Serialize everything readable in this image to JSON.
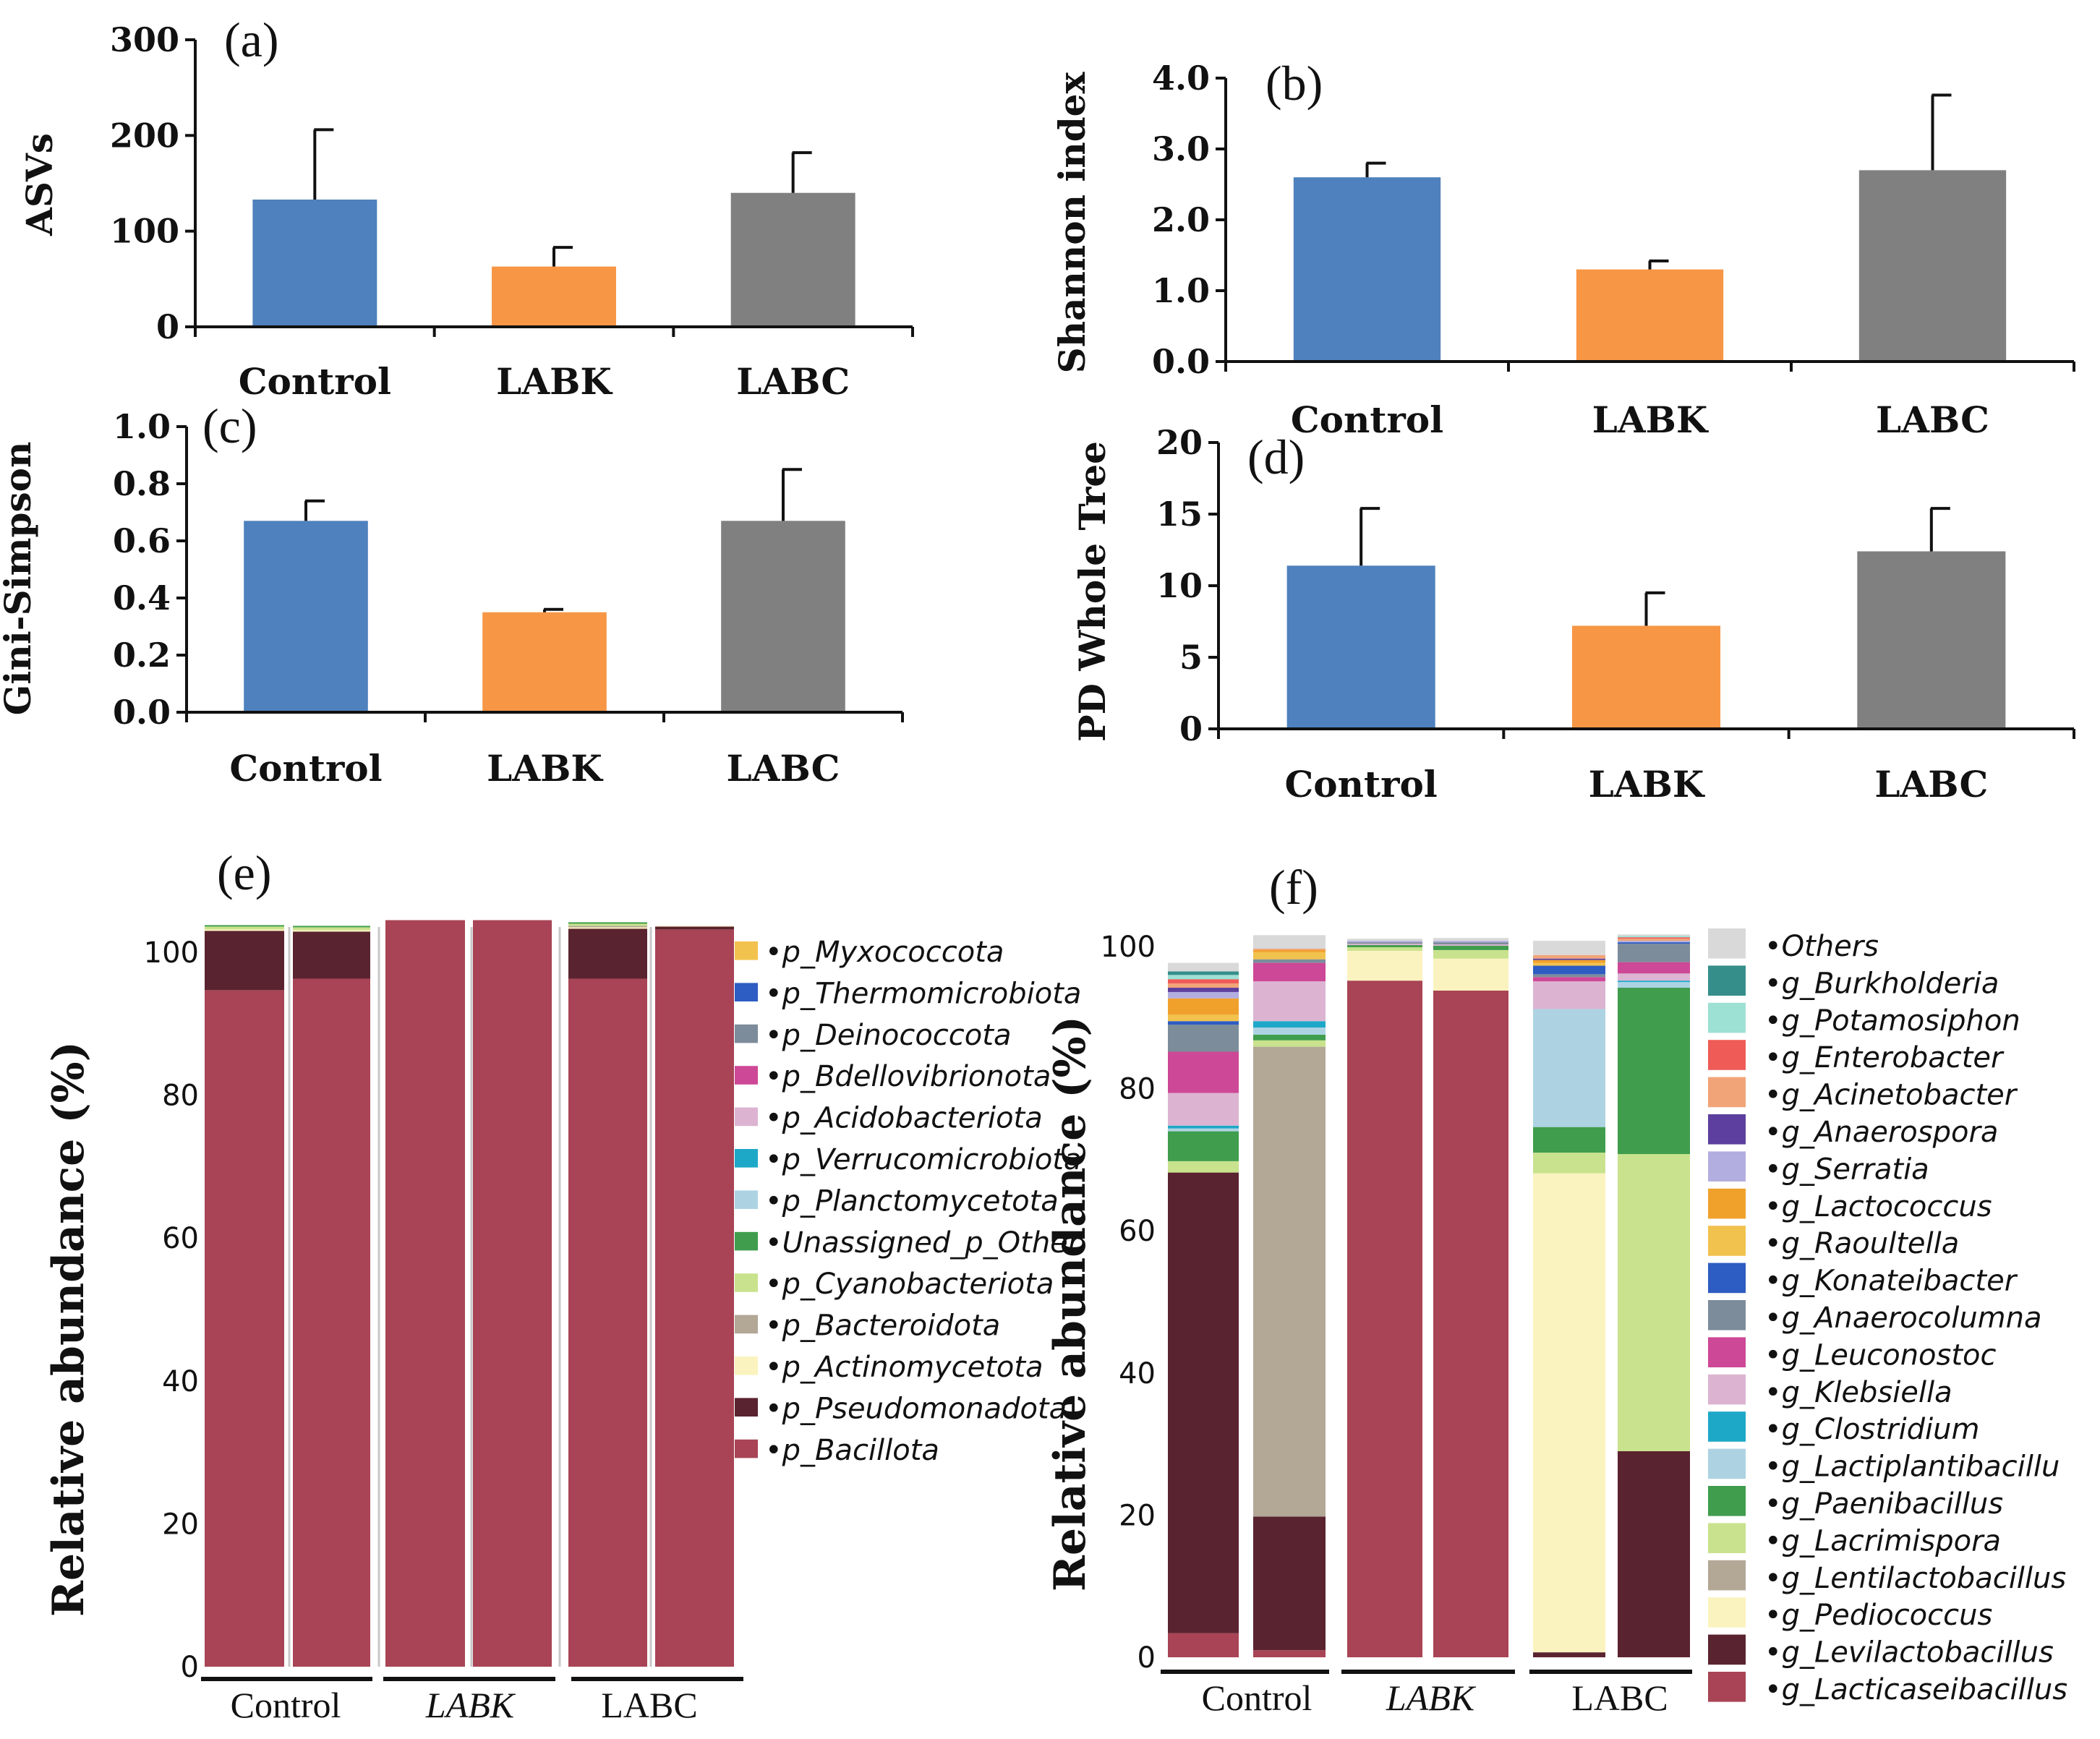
{
  "colors": {
    "control": "#4e81bd",
    "labk": "#f79645",
    "labc": "#808080",
    "axis": "#111111",
    "errorbar": "#111111"
  },
  "chart_data": [
    {
      "panel": "(a)",
      "type": "bar",
      "ylabel": "ASVs",
      "xlabel": "",
      "categories": [
        "Control",
        "LABK",
        "LABC"
      ],
      "values": [
        133,
        63,
        140
      ],
      "errors": [
        73,
        20,
        42
      ],
      "ylim": [
        0,
        300
      ],
      "yticks": [
        0,
        100,
        200,
        300
      ],
      "ytick_labels": [
        "0",
        "100",
        "200",
        "300"
      ]
    },
    {
      "panel": "(b)",
      "type": "bar",
      "ylabel": "Shannon index",
      "xlabel": "",
      "categories": [
        "Control",
        "LABK",
        "LABC"
      ],
      "values": [
        2.6,
        1.3,
        2.7
      ],
      "errors": [
        0.2,
        0.12,
        1.06
      ],
      "ylim": [
        0,
        4
      ],
      "yticks": [
        0,
        1,
        2,
        3,
        4
      ],
      "ytick_labels": [
        "0.0",
        "1.0",
        "2.0",
        "3.0",
        "4.0"
      ]
    },
    {
      "panel": "(c)",
      "type": "bar",
      "ylabel": "Gini-Simpson",
      "xlabel": "",
      "categories": [
        "Control",
        "LABK",
        "LABC"
      ],
      "values": [
        0.67,
        0.35,
        0.67
      ],
      "errors": [
        0.07,
        0.01,
        0.18
      ],
      "ylim": [
        0,
        1
      ],
      "yticks": [
        0,
        0.2,
        0.4,
        0.6,
        0.8,
        1.0
      ],
      "ytick_labels": [
        "0.0",
        "0.2",
        "0.4",
        "0.6",
        "0.8",
        "1.0"
      ]
    },
    {
      "panel": "(d)",
      "type": "bar",
      "ylabel": "PD Whole Tree",
      "xlabel": "",
      "categories": [
        "Control",
        "LABK",
        "LABC"
      ],
      "values": [
        11.4,
        7.2,
        12.4
      ],
      "errors": [
        4.0,
        2.3,
        3.0
      ],
      "ylim": [
        0,
        20
      ],
      "yticks": [
        0,
        5,
        10,
        15,
        20
      ],
      "ytick_labels": [
        "0",
        "5",
        "10",
        "15",
        "20"
      ]
    },
    {
      "panel": "(e)",
      "type": "bar",
      "stacked": true,
      "ylabel": "Relative abundance (%)",
      "groups": [
        "Control",
        "LABK",
        "LABC"
      ],
      "samples_per_group": 2,
      "ylim": [
        0,
        104
      ],
      "yticks": [
        0,
        20,
        40,
        60,
        80,
        100
      ],
      "ytick_labels": [
        "0",
        "20",
        "40",
        "60",
        "80",
        "100"
      ],
      "series": [
        {
          "name": "p_Bacillota",
          "color": "#a84455",
          "values": [
            94.7,
            96.3,
            104.5,
            104.5,
            96.3,
            103.2
          ]
        },
        {
          "name": "p_Pseudomonadota",
          "color": "#5a2330",
          "values": [
            8.3,
            6.6,
            0,
            0,
            7.0,
            0.4
          ]
        },
        {
          "name": "p_Actinomycetota",
          "color": "#fbf3bf",
          "values": [
            0.2,
            0.2,
            0,
            0,
            0.2,
            0.1
          ]
        },
        {
          "name": "p_Bacteroidota",
          "color": "#b3a796",
          "values": [
            0,
            0,
            0,
            0,
            0.2,
            0
          ]
        },
        {
          "name": "p_Cyanobacteriota",
          "color": "#c9e28d",
          "values": [
            0.4,
            0.4,
            0,
            0,
            0.3,
            0
          ]
        },
        {
          "name": "Unassigned_p_Other",
          "color": "#3f9d4d",
          "values": [
            0.2,
            0.2,
            0,
            0,
            0.2,
            0
          ]
        },
        {
          "name": "p_Planctomycetota",
          "color": "#add3e3",
          "values": [
            0,
            0,
            0,
            0,
            0,
            0
          ]
        },
        {
          "name": "p_Verrucomicrobiota",
          "color": "#1ea8c8",
          "values": [
            0,
            0,
            0,
            0,
            0,
            0
          ]
        },
        {
          "name": "p_Acidobacteriota",
          "color": "#dcb4d2",
          "values": [
            0,
            0,
            0,
            0,
            0,
            0
          ]
        },
        {
          "name": "p_Bdellovibrionota",
          "color": "#cd4896",
          "values": [
            0,
            0,
            0,
            0,
            0,
            0
          ]
        },
        {
          "name": "p_Deinococcota",
          "color": "#7c8c9a",
          "values": [
            0,
            0,
            0,
            0,
            0,
            0
          ]
        },
        {
          "name": "p_Thermomicrobiota",
          "color": "#2d5cc2",
          "values": [
            0,
            0,
            0,
            0,
            0,
            0
          ]
        },
        {
          "name": "p_Myxococcota",
          "color": "#f2c24e",
          "values": [
            0,
            0,
            0,
            0,
            0,
            0
          ]
        }
      ]
    },
    {
      "panel": "(f)",
      "type": "bar",
      "stacked": true,
      "ylabel": "Relative abundance (%)",
      "groups": [
        "Control",
        "LABK",
        "LABC"
      ],
      "samples_per_group": 2,
      "ylim": [
        0,
        104
      ],
      "yticks": [
        0,
        20,
        40,
        60,
        80,
        100
      ],
      "ytick_labels": [
        "0",
        "20",
        "40",
        "60",
        "80",
        "100"
      ],
      "series": [
        {
          "name": "g_Lacticaseibacillus",
          "color": "#a84455",
          "values": [
            3.4,
            1.0,
            95.2,
            93.8,
            0,
            0
          ]
        },
        {
          "name": "g_Levilactobacillus",
          "color": "#5a2330",
          "values": [
            64.8,
            18.8,
            0,
            0,
            0.7,
            29.0
          ]
        },
        {
          "name": "g_Pediococcus",
          "color": "#fbf3bf",
          "values": [
            0,
            0,
            4.2,
            4.5,
            67.4,
            0
          ]
        },
        {
          "name": "g_Lentilactobacillus",
          "color": "#b3a796",
          "values": [
            0,
            66.1,
            0,
            0,
            0,
            0
          ]
        },
        {
          "name": "g_Lacrimispora",
          "color": "#c9e28d",
          "values": [
            1.6,
            0.9,
            0.5,
            1.2,
            2.9,
            41.8
          ]
        },
        {
          "name": "g_Paenibacillus",
          "color": "#3f9d4d",
          "values": [
            4.2,
            0.8,
            0.3,
            0.6,
            3.6,
            23.4
          ]
        },
        {
          "name": "g_Lactiplantibacillu",
          "color": "#add3e3",
          "values": [
            0.4,
            1.0,
            0,
            0,
            16.6,
            0.8
          ]
        },
        {
          "name": "g_Clostridium",
          "color": "#1ea8c8",
          "values": [
            0.4,
            0.9,
            0,
            0,
            0,
            0.2
          ]
        },
        {
          "name": "g_Klebsiella",
          "color": "#dcb4d2",
          "values": [
            4.6,
            5.6,
            0.2,
            0.2,
            3.9,
            1.0
          ]
        },
        {
          "name": "g_Leuconostoc",
          "color": "#cd4896",
          "values": [
            5.8,
            2.6,
            0,
            0,
            0.6,
            1.6
          ]
        },
        {
          "name": "g_Anaerocolumna",
          "color": "#7c8c9a",
          "values": [
            3.8,
            0.5,
            0.2,
            0.3,
            0.4,
            2.6
          ]
        },
        {
          "name": "g_Konateibacter",
          "color": "#2d5cc2",
          "values": [
            0.5,
            0,
            0,
            0,
            1.2,
            0.2
          ]
        },
        {
          "name": "g_Raoultella",
          "color": "#f2c24e",
          "values": [
            0.9,
            1.0,
            0,
            0,
            0.4,
            0
          ]
        },
        {
          "name": "g_Lactococcus",
          "color": "#f0a12c",
          "values": [
            2.3,
            0.3,
            0,
            0,
            0.4,
            0
          ]
        },
        {
          "name": "g_Serratia",
          "color": "#b3aee0",
          "values": [
            0.9,
            0,
            0.2,
            0.2,
            0,
            0.2
          ]
        },
        {
          "name": "g_Anaerospora",
          "color": "#5c3f9e",
          "values": [
            0.6,
            0,
            0,
            0,
            0.2,
            0
          ]
        },
        {
          "name": "g_Acinetobacter",
          "color": "#f1a477",
          "values": [
            0.6,
            0.2,
            0,
            0,
            0.5,
            0.3
          ]
        },
        {
          "name": "g_Enterobacter",
          "color": "#ef5b57",
          "values": [
            0.6,
            0,
            0,
            0,
            0,
            0.2
          ]
        },
        {
          "name": "g_Potamosiphon",
          "color": "#9de0d4",
          "values": [
            0.6,
            0,
            0,
            0,
            0,
            0.2
          ]
        },
        {
          "name": "g_Burkholderia",
          "color": "#358e8a",
          "values": [
            0.5,
            0,
            0,
            0,
            0,
            0
          ]
        },
        {
          "name": "Others",
          "color": "#d9d9d9",
          "values": [
            1.2,
            1.9,
            0.3,
            0.4,
            2.0,
            0.2
          ]
        }
      ]
    }
  ]
}
